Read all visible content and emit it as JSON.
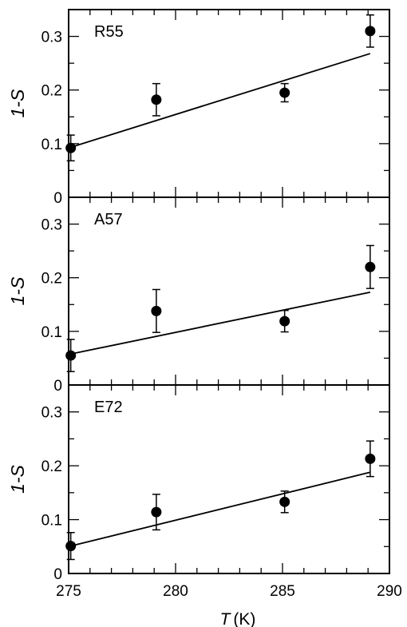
{
  "chart_data": {
    "type": "scatter",
    "x_axis": {
      "label_var": "T",
      "label_unit": "(K)",
      "range": [
        275,
        290
      ],
      "ticks": [
        "275",
        "280",
        "285",
        "290"
      ],
      "minor_step": 1
    },
    "panels": [
      {
        "label": "R55",
        "ylabel": "1-S",
        "y_range": [
          0,
          0.35
        ],
        "y_ticks": [
          "0",
          "0.1",
          "0.2",
          "0.3"
        ],
        "points": [
          {
            "x": 275.1,
            "y": 0.092,
            "err": 0.024
          },
          {
            "x": 279.1,
            "y": 0.182,
            "err": 0.03
          },
          {
            "x": 285.1,
            "y": 0.195,
            "err": 0.017
          },
          {
            "x": 289.1,
            "y": 0.31,
            "err": 0.03
          }
        ],
        "fit": {
          "x": [
            275.0,
            289.1
          ],
          "y": [
            0.092,
            0.268
          ]
        }
      },
      {
        "label": "A57",
        "ylabel": "1-S",
        "y_range": [
          0,
          0.35
        ],
        "y_ticks": [
          "0",
          "0.1",
          "0.2",
          "0.3"
        ],
        "points": [
          {
            "x": 275.1,
            "y": 0.055,
            "err": 0.03
          },
          {
            "x": 279.1,
            "y": 0.138,
            "err": 0.04
          },
          {
            "x": 285.1,
            "y": 0.119,
            "err": 0.02
          },
          {
            "x": 289.1,
            "y": 0.22,
            "err": 0.04
          }
        ],
        "fit": {
          "x": [
            275.0,
            289.1
          ],
          "y": [
            0.057,
            0.173
          ]
        }
      },
      {
        "label": "E72",
        "ylabel": "1-S",
        "y_range": [
          0,
          0.35
        ],
        "y_ticks": [
          "0",
          "0.1",
          "0.2",
          "0.3"
        ],
        "points": [
          {
            "x": 275.1,
            "y": 0.051,
            "err": 0.025
          },
          {
            "x": 279.1,
            "y": 0.114,
            "err": 0.033
          },
          {
            "x": 285.1,
            "y": 0.133,
            "err": 0.02
          },
          {
            "x": 289.1,
            "y": 0.213,
            "err": 0.033
          }
        ],
        "fit": {
          "x": [
            275.0,
            289.1
          ],
          "y": [
            0.05,
            0.188
          ]
        }
      }
    ],
    "grid": false,
    "legend": "none"
  }
}
